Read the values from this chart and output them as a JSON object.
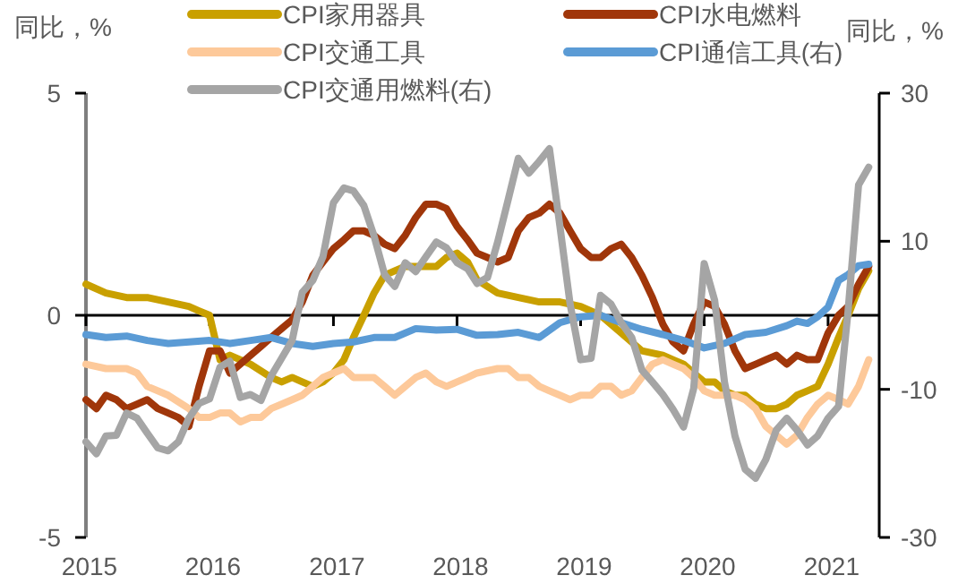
{
  "chart_data": {
    "type": "line",
    "ylabel": "同比，%",
    "y2label": "同比，%",
    "x": [
      "2015-01",
      "2015-02",
      "2015-03",
      "2015-04",
      "2015-05",
      "2015-06",
      "2015-07",
      "2015-08",
      "2015-09",
      "2015-10",
      "2015-11",
      "2015-12",
      "2016-01",
      "2016-02",
      "2016-03",
      "2016-04",
      "2016-05",
      "2016-06",
      "2016-07",
      "2016-08",
      "2016-09",
      "2016-10",
      "2016-11",
      "2016-12",
      "2017-01",
      "2017-02",
      "2017-03",
      "2017-04",
      "2017-05",
      "2017-06",
      "2017-07",
      "2017-08",
      "2017-09",
      "2017-10",
      "2017-11",
      "2017-12",
      "2018-01",
      "2018-02",
      "2018-03",
      "2018-04",
      "2018-05",
      "2018-06",
      "2018-07",
      "2018-08",
      "2018-09",
      "2018-10",
      "2018-11",
      "2018-12",
      "2019-01",
      "2019-02",
      "2019-03",
      "2019-04",
      "2019-05",
      "2019-06",
      "2019-07",
      "2019-08",
      "2019-09",
      "2019-10",
      "2019-11",
      "2019-12",
      "2020-01",
      "2020-02",
      "2020-03",
      "2020-04",
      "2020-05",
      "2020-06",
      "2020-07",
      "2020-08",
      "2020-09",
      "2020-10",
      "2020-11",
      "2020-12",
      "2021-01",
      "2021-02",
      "2021-03",
      "2021-04",
      "2021-05"
    ],
    "xlim": [
      "2015-01",
      "2021-06"
    ],
    "xticks": [
      {
        "value": "2015-01",
        "label": "2015"
      },
      {
        "value": "2016-01",
        "label": "2016"
      },
      {
        "value": "2017-01",
        "label": "2017"
      },
      {
        "value": "2018-01",
        "label": "2018"
      },
      {
        "value": "2019-01",
        "label": "2019"
      },
      {
        "value": "2020-01",
        "label": "2020"
      },
      {
        "value": "2021-01",
        "label": "2021"
      }
    ],
    "ylim": [
      -5,
      5
    ],
    "yticks": [
      -5,
      0,
      5
    ],
    "y2lim": [
      -30,
      30
    ],
    "y2ticks": [
      -30,
      -10,
      10,
      30
    ],
    "legend": "top",
    "marker": "none",
    "line_style": "solid",
    "series": [
      {
        "name": "CPI家用器具",
        "color": "#c9a000",
        "x": [
          "2015-01",
          "2015-03",
          "2015-05",
          "2015-07",
          "2015-09",
          "2015-11",
          "2015-12",
          "2016-01",
          "2016-02",
          "2016-03",
          "2016-05",
          "2016-07",
          "2016-08",
          "2016-09",
          "2016-10",
          "2016-11",
          "2016-12",
          "2017-01",
          "2017-02",
          "2017-03",
          "2017-04",
          "2017-05",
          "2017-06",
          "2017-07",
          "2017-08",
          "2017-09",
          "2017-10",
          "2017-11",
          "2017-12",
          "2018-01",
          "2018-02",
          "2018-03",
          "2018-05",
          "2018-07",
          "2018-09",
          "2018-11",
          "2019-01",
          "2019-03",
          "2019-05",
          "2019-07",
          "2019-09",
          "2019-10",
          "2019-11",
          "2019-12",
          "2020-01",
          "2020-02",
          "2020-03",
          "2020-04",
          "2020-05",
          "2020-06",
          "2020-07",
          "2020-08",
          "2020-09",
          "2020-10",
          "2020-11",
          "2020-12",
          "2021-01",
          "2021-02",
          "2021-03",
          "2021-04",
          "2021-05"
        ],
        "values": [
          0.7,
          0.5,
          0.4,
          0.4,
          0.3,
          0.2,
          0.1,
          0.0,
          -1.0,
          -0.9,
          -1.1,
          -1.4,
          -1.5,
          -1.4,
          -1.5,
          -1.6,
          -1.5,
          -1.3,
          -1.0,
          -0.5,
          0.0,
          0.5,
          0.9,
          1.0,
          1.1,
          1.1,
          1.1,
          1.1,
          1.3,
          1.4,
          1.2,
          0.8,
          0.5,
          0.4,
          0.3,
          0.3,
          0.2,
          0.0,
          -0.4,
          -0.8,
          -0.9,
          -1.0,
          -1.1,
          -1.3,
          -1.5,
          -1.5,
          -1.7,
          -1.8,
          -1.8,
          -2.0,
          -2.1,
          -2.1,
          -2.0,
          -1.8,
          -1.7,
          -1.6,
          -1.1,
          -0.5,
          0.0,
          0.6,
          1.0
        ]
      },
      {
        "name": "CPI水电燃料",
        "color": "#a0360a",
        "values": [
          -1.9,
          -2.1,
          -1.8,
          -1.9,
          -2.1,
          -2.0,
          -1.9,
          -2.1,
          -2.2,
          -2.3,
          -2.5,
          -1.6,
          -0.8,
          -0.8,
          -1.3,
          -1.1,
          -0.9,
          -0.7,
          -0.5,
          -0.3,
          -0.1,
          0.3,
          0.9,
          1.2,
          1.5,
          1.7,
          1.9,
          1.9,
          1.8,
          1.6,
          1.5,
          1.8,
          2.2,
          2.5,
          2.5,
          2.4,
          2.0,
          1.7,
          1.4,
          1.3,
          1.2,
          1.3,
          1.9,
          2.2,
          2.3,
          2.5,
          2.3,
          1.9,
          1.5,
          1.3,
          1.3,
          1.5,
          1.6,
          1.3,
          0.9,
          0.4,
          -0.2,
          -0.6,
          -0.8,
          -0.2,
          0.3,
          0.2,
          -0.2,
          -0.8,
          -1.2,
          -1.1,
          -1.0,
          -0.9,
          -1.1,
          -0.9,
          -1.0,
          -1.0,
          -0.4,
          0.0,
          0.2,
          0.7,
          1.1
        ]
      },
      {
        "name": "CPI交通工具",
        "color": "#fdc99a",
        "x": [
          "2015-01",
          "2015-03",
          "2015-05",
          "2015-06",
          "2015-07",
          "2015-09",
          "2015-11",
          "2015-12",
          "2016-01",
          "2016-02",
          "2016-03",
          "2016-04",
          "2016-05",
          "2016-06",
          "2016-07",
          "2016-08",
          "2016-09",
          "2016-10",
          "2016-11",
          "2016-12",
          "2017-01",
          "2017-02",
          "2017-03",
          "2017-04",
          "2017-05",
          "2017-06",
          "2017-07",
          "2017-08",
          "2017-09",
          "2017-10",
          "2017-11",
          "2017-12",
          "2018-01",
          "2018-02",
          "2018-03",
          "2018-05",
          "2018-06",
          "2018-07",
          "2018-08",
          "2018-09",
          "2018-10",
          "2018-11",
          "2018-12",
          "2019-01",
          "2019-02",
          "2019-03",
          "2019-04",
          "2019-05",
          "2019-06",
          "2019-07",
          "2019-08",
          "2019-09",
          "2019-10",
          "2019-11",
          "2019-12",
          "2020-01",
          "2020-02",
          "2020-03",
          "2020-04",
          "2020-05",
          "2020-06",
          "2020-07",
          "2020-08",
          "2020-09",
          "2020-10",
          "2020-11",
          "2020-12",
          "2021-01",
          "2021-02",
          "2021-03",
          "2021-04",
          "2021-05"
        ],
        "values": [
          -1.1,
          -1.2,
          -1.2,
          -1.3,
          -1.6,
          -1.8,
          -2.1,
          -2.3,
          -2.3,
          -2.2,
          -2.2,
          -2.4,
          -2.3,
          -2.3,
          -2.1,
          -2.0,
          -1.9,
          -1.8,
          -1.6,
          -1.4,
          -1.3,
          -1.2,
          -1.4,
          -1.4,
          -1.4,
          -1.6,
          -1.8,
          -1.6,
          -1.4,
          -1.3,
          -1.5,
          -1.6,
          -1.5,
          -1.4,
          -1.3,
          -1.2,
          -1.2,
          -1.4,
          -1.4,
          -1.6,
          -1.7,
          -1.8,
          -1.9,
          -1.8,
          -1.8,
          -1.6,
          -1.6,
          -1.8,
          -1.7,
          -1.4,
          -1.1,
          -1.0,
          -1.1,
          -1.2,
          -1.4,
          -1.7,
          -1.8,
          -1.8,
          -1.8,
          -1.9,
          -2.1,
          -2.5,
          -2.7,
          -2.9,
          -2.7,
          -2.3,
          -2.0,
          -1.8,
          -1.9,
          -2.0,
          -1.6,
          -1.0
        ]
      },
      {
        "name": "CPI通信工具(右)",
        "color": "#5b9bd5",
        "axis": "y2",
        "x": [
          "2015-01",
          "2015-03",
          "2015-05",
          "2015-07",
          "2015-09",
          "2015-11",
          "2016-01",
          "2016-03",
          "2016-05",
          "2016-07",
          "2016-09",
          "2016-11",
          "2017-01",
          "2017-03",
          "2017-05",
          "2017-07",
          "2017-09",
          "2017-11",
          "2018-01",
          "2018-03",
          "2018-05",
          "2018-07",
          "2018-09",
          "2018-11",
          "2019-01",
          "2019-03",
          "2019-05",
          "2019-07",
          "2019-09",
          "2019-11",
          "2020-01",
          "2020-03",
          "2020-05",
          "2020-07",
          "2020-09",
          "2020-10",
          "2020-11",
          "2020-12",
          "2021-01",
          "2021-02",
          "2021-03",
          "2021-04",
          "2021-05"
        ],
        "values": [
          -2.6,
          -3.0,
          -2.8,
          -3.4,
          -3.8,
          -3.6,
          -3.4,
          -3.8,
          -3.4,
          -3.0,
          -3.8,
          -4.2,
          -3.8,
          -3.6,
          -3.0,
          -3.0,
          -1.8,
          -2.0,
          -1.9,
          -2.7,
          -2.6,
          -2.3,
          -3.0,
          -1.0,
          -0.2,
          0.0,
          -1.0,
          -1.9,
          -2.6,
          -3.4,
          -4.4,
          -3.8,
          -2.6,
          -2.3,
          -1.4,
          -0.8,
          -1.1,
          -0.2,
          1.1,
          4.7,
          5.5,
          6.7,
          6.9
        ]
      },
      {
        "name": "CPI交通用燃料(右)",
        "color": "#a5a5a5",
        "axis": "y2",
        "values": [
          -17.1,
          -18.7,
          -16.3,
          -16.2,
          -13.2,
          -13.9,
          -15.9,
          -17.9,
          -18.3,
          -17.1,
          -13.9,
          -11.9,
          -11.3,
          -7.0,
          -6.2,
          -11.1,
          -10.7,
          -11.5,
          -8.2,
          -5.8,
          -3.4,
          3.1,
          4.7,
          7.9,
          15.2,
          17.2,
          16.8,
          14.8,
          10.7,
          5.5,
          3.9,
          7.1,
          5.9,
          7.9,
          9.9,
          9.1,
          7.1,
          6.3,
          4.3,
          5.1,
          9.9,
          15.6,
          21.2,
          19.2,
          20.8,
          22.5,
          12.0,
          1.5,
          -6.0,
          -5.8,
          2.7,
          1.5,
          -1.0,
          -3.0,
          -7.4,
          -9.0,
          -10.7,
          -12.7,
          -15.1,
          -9.9,
          7.0,
          2.0,
          -9.0,
          -16.3,
          -20.8,
          -22.0,
          -19.5,
          -15.5,
          -13.9,
          -15.5,
          -17.5,
          -16.3,
          -13.9,
          -12.3,
          0.6,
          17.6,
          20.0
        ]
      }
    ]
  }
}
